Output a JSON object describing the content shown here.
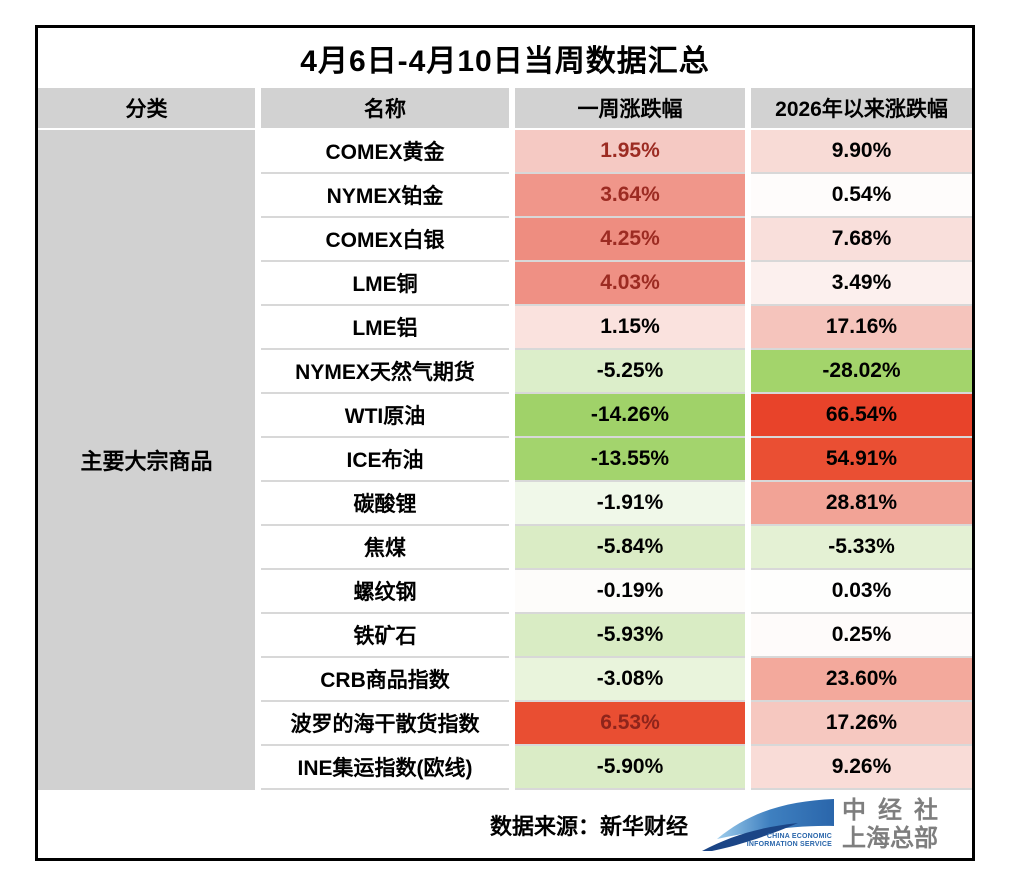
{
  "title": "4月6日-4月10日当周数据汇总",
  "header": {
    "category": "分类",
    "name": "名称",
    "week": "一周涨跌幅",
    "ytd": "2026年以来涨跌幅"
  },
  "category_label": "主要大宗商品",
  "rows": [
    {
      "name": "COMEX黄金",
      "week": "1.95%",
      "ytd": "9.90%",
      "week_bg": "#f5c9c3",
      "week_fg": "#9c2b22",
      "ytd_bg": "#f8dbd6",
      "ytd_fg": "#000000"
    },
    {
      "name": "NYMEX铂金",
      "week": "3.64%",
      "ytd": "0.54%",
      "week_bg": "#f0968a",
      "week_fg": "#9c2b22",
      "ytd_bg": "#fefcfb",
      "ytd_fg": "#000000"
    },
    {
      "name": "COMEX白银",
      "week": "4.25%",
      "ytd": "7.68%",
      "week_bg": "#ee8d80",
      "week_fg": "#9c2b22",
      "ytd_bg": "#f9dfdb",
      "ytd_fg": "#000000"
    },
    {
      "name": "LME铜",
      "week": "4.03%",
      "ytd": "3.49%",
      "week_bg": "#ef9084",
      "week_fg": "#9c2b22",
      "ytd_bg": "#fcf0ee",
      "ytd_fg": "#000000"
    },
    {
      "name": "LME铝",
      "week": "1.15%",
      "ytd": "17.16%",
      "week_bg": "#fae2de",
      "week_fg": "#000000",
      "ytd_bg": "#f5c4bc",
      "ytd_fg": "#000000"
    },
    {
      "name": "NYMEX天然气期货",
      "week": "-5.25%",
      "ytd": "-28.02%",
      "week_bg": "#dceeca",
      "week_fg": "#000000",
      "ytd_bg": "#a3d46b",
      "ytd_fg": "#000000"
    },
    {
      "name": "WTI原油",
      "week": "-14.26%",
      "ytd": "66.54%",
      "week_bg": "#a0d269",
      "week_fg": "#000000",
      "ytd_bg": "#e8432a",
      "ytd_fg": "#000000"
    },
    {
      "name": "ICE布油",
      "week": "-13.55%",
      "ytd": "54.91%",
      "week_bg": "#a3d46d",
      "week_fg": "#000000",
      "ytd_bg": "#ea4f33",
      "ytd_fg": "#000000"
    },
    {
      "name": "碳酸锂",
      "week": "-1.91%",
      "ytd": "28.81%",
      "week_bg": "#f0f8e9",
      "week_fg": "#000000",
      "ytd_bg": "#f2a396",
      "ytd_fg": "#000000"
    },
    {
      "name": "焦煤",
      "week": "-5.84%",
      "ytd": "-5.33%",
      "week_bg": "#daecc5",
      "week_fg": "#000000",
      "ytd_bg": "#e4f1d4",
      "ytd_fg": "#000000"
    },
    {
      "name": "螺纹钢",
      "week": "-0.19%",
      "ytd": "0.03%",
      "week_bg": "#fdfcfa",
      "week_fg": "#000000",
      "ytd_bg": "#fefefd",
      "ytd_fg": "#000000"
    },
    {
      "name": "铁矿石",
      "week": "-5.93%",
      "ytd": "0.25%",
      "week_bg": "#d9ecc4",
      "week_fg": "#000000",
      "ytd_bg": "#fefbfa",
      "ytd_fg": "#000000"
    },
    {
      "name": "CRB商品指数",
      "week": "-3.08%",
      "ytd": "23.60%",
      "week_bg": "#e9f4dc",
      "week_fg": "#000000",
      "ytd_bg": "#f3a99c",
      "ytd_fg": "#000000"
    },
    {
      "name": "波罗的海干散货指数",
      "week": "6.53%",
      "ytd": "17.26%",
      "week_bg": "#e94e32",
      "week_fg": "#8e241b",
      "ytd_bg": "#f6c8c0",
      "ytd_fg": "#000000"
    },
    {
      "name": "INE集运指数(欧线)",
      "week": "-5.90%",
      "ytd": "9.26%",
      "week_bg": "#daecc6",
      "week_fg": "#000000",
      "ytd_bg": "#f9dcd7",
      "ytd_fg": "#000000"
    }
  ],
  "footer": {
    "source": "数据来源：新华财经",
    "logo": {
      "caption_line1": "CHINA ECONOMIC",
      "caption_line2": "INFORMATION SERVICE",
      "name_line1": "中经社",
      "name_line2": "上海总部"
    }
  },
  "colors": {
    "header_bg": "#d2d2d2",
    "category_bg": "#d1d1d1",
    "table_border": "#000000",
    "row_line": "#d8d8d8",
    "strong_red": "#e8432a",
    "strong_green": "#a2d46b",
    "positive_week_text": "#9c2b22",
    "logo_blue_dark": "#1b4586",
    "logo_blue": "#2a66ab",
    "logo_gray": "#7e7e7e"
  },
  "chart_data": {
    "type": "table",
    "title": "4月6日-4月10日当周数据汇总",
    "columns": [
      "分类",
      "名称",
      "一周涨跌幅",
      "2026年以来涨跌幅"
    ],
    "category": "主要大宗商品",
    "rows": [
      [
        "COMEX黄金",
        1.95,
        9.9
      ],
      [
        "NYMEX铂金",
        3.64,
        0.54
      ],
      [
        "COMEX白银",
        4.25,
        7.68
      ],
      [
        "LME铜",
        4.03,
        3.49
      ],
      [
        "LME铝",
        1.15,
        17.16
      ],
      [
        "NYMEX天然气期货",
        -5.25,
        -28.02
      ],
      [
        "WTI原油",
        -14.26,
        66.54
      ],
      [
        "ICE布油",
        -13.55,
        54.91
      ],
      [
        "碳酸锂",
        -1.91,
        28.81
      ],
      [
        "焦煤",
        -5.84,
        -5.33
      ],
      [
        "螺纹钢",
        -0.19,
        0.03
      ],
      [
        "铁矿石",
        -5.93,
        0.25
      ],
      [
        "CRB商品指数",
        -3.08,
        23.6
      ],
      [
        "波罗的海干散货指数",
        6.53,
        17.26
      ],
      [
        "INE集运指数(欧线)",
        -5.9,
        9.26
      ]
    ],
    "units": "percent",
    "source": "数据来源：新华财经",
    "color_coding": "red=rise, green=fall, intensity scales with magnitude"
  }
}
